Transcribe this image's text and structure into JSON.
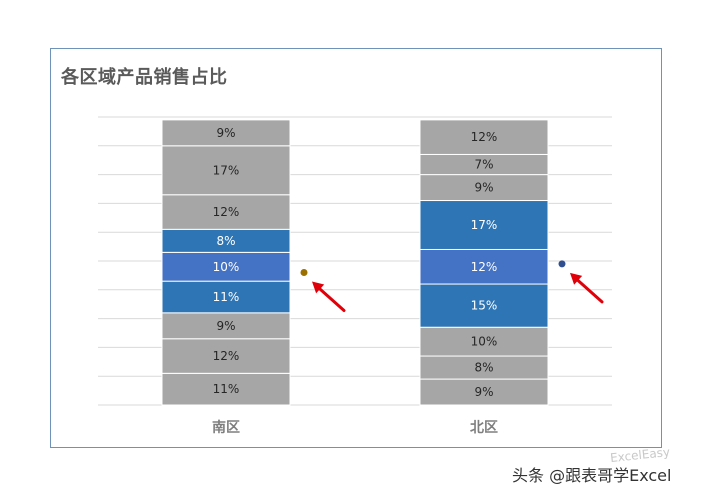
{
  "chart_data": {
    "type": "bar",
    "stacked": true,
    "title": "各区域产品销售占比",
    "categories": [
      "南区",
      "北区"
    ],
    "segments": [
      {
        "category": "南区",
        "items": [
          {
            "value": 11,
            "label": "11%",
            "color": "#a6a6a6"
          },
          {
            "value": 12,
            "label": "12%",
            "color": "#a6a6a6"
          },
          {
            "value": 9,
            "label": "9%",
            "color": "#a6a6a6"
          },
          {
            "value": 11,
            "label": "11%",
            "color": "#2e75b6"
          },
          {
            "value": 10,
            "label": "10%",
            "color": "#4472c4"
          },
          {
            "value": 8,
            "label": "8%",
            "color": "#2e75b6"
          },
          {
            "value": 12,
            "label": "12%",
            "color": "#a6a6a6"
          },
          {
            "value": 17,
            "label": "17%",
            "color": "#a6a6a6"
          },
          {
            "value": 9,
            "label": "9%",
            "color": "#a6a6a6"
          }
        ],
        "marker": {
          "value": 46,
          "color": "#9b6f00"
        }
      },
      {
        "category": "北区",
        "items": [
          {
            "value": 9,
            "label": "9%",
            "color": "#a6a6a6"
          },
          {
            "value": 8,
            "label": "8%",
            "color": "#a6a6a6"
          },
          {
            "value": 10,
            "label": "10%",
            "color": "#a6a6a6"
          },
          {
            "value": 15,
            "label": "15%",
            "color": "#2e75b6"
          },
          {
            "value": 12,
            "label": "12%",
            "color": "#4472c4"
          },
          {
            "value": 17,
            "label": "17%",
            "color": "#2e75b6"
          },
          {
            "value": 9,
            "label": "9%",
            "color": "#a6a6a6"
          },
          {
            "value": 7,
            "label": "7%",
            "color": "#a6a6a6"
          },
          {
            "value": 12,
            "label": "12%",
            "color": "#a6a6a6"
          }
        ],
        "marker": {
          "value": 49,
          "color": "#2f4f8f"
        }
      }
    ],
    "ylim": [
      0,
      100
    ],
    "grid": true,
    "legend": "none",
    "arrow_color": "#e0000a"
  },
  "watermark": {
    "text": "头条 @跟表哥学Excel",
    "logo": "ExcelEasy"
  }
}
